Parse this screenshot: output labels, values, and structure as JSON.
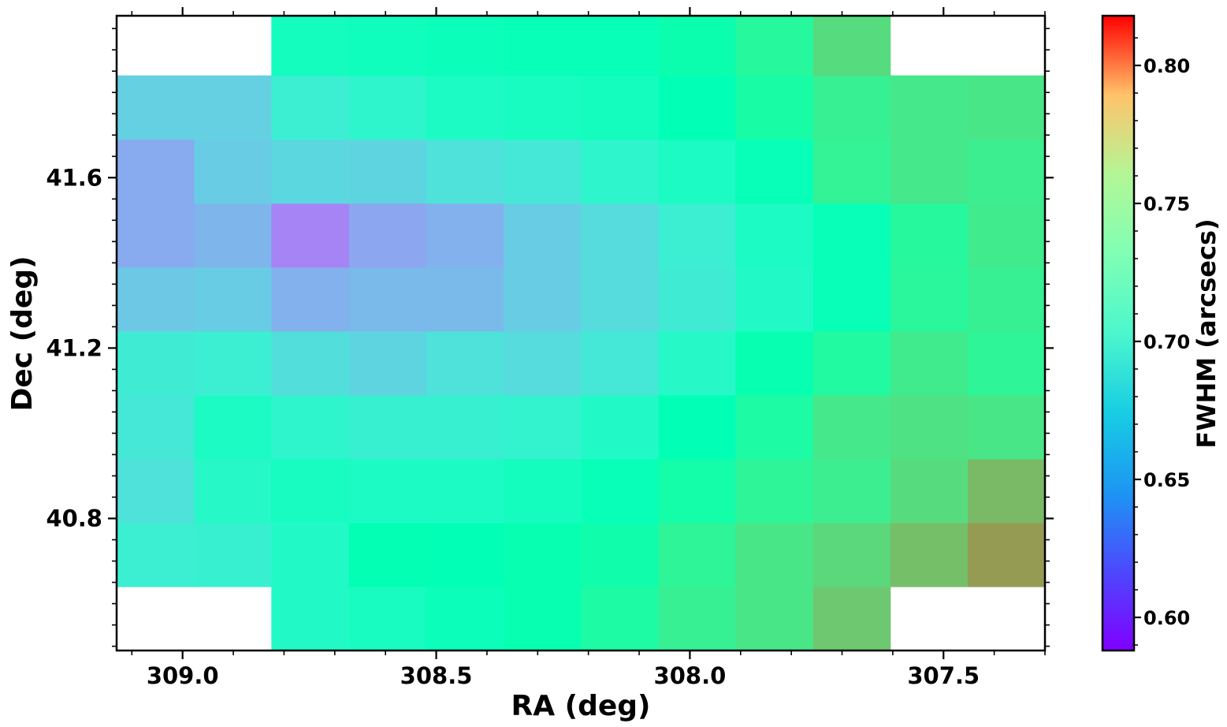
{
  "chart_data": {
    "type": "heatmap",
    "title": "",
    "xlabel": "RA (deg)",
    "ylabel": "Dec (deg)",
    "colorbar_label": "FWHM (arcsecs)",
    "colormap": "rainbow",
    "x_inverted": true,
    "xlim": [
      309.13,
      307.3
    ],
    "ylim": [
      40.49,
      41.98
    ],
    "x_ticks": [
      309.0,
      308.5,
      308.0,
      307.5
    ],
    "x_tick_labels": [
      "309.0",
      "308.5",
      "308.0",
      "307.5"
    ],
    "y_ticks": [
      40.8,
      41.2,
      41.6
    ],
    "y_tick_labels": [
      "40.8",
      "41.2",
      "41.6"
    ],
    "clim": [
      0.588,
      0.818
    ],
    "colorbar_ticks": [
      0.6,
      0.65,
      0.7,
      0.75,
      0.8
    ],
    "colorbar_tick_labels": [
      "0.60",
      "0.65",
      "0.70",
      "0.75",
      "0.80"
    ],
    "x_bin_edges": [
      309.13,
      308.977,
      308.825,
      308.672,
      308.52,
      308.367,
      308.215,
      308.062,
      307.91,
      307.757,
      307.605,
      307.452,
      307.3
    ],
    "y_bin_edges": [
      40.49,
      40.64,
      40.79,
      40.94,
      41.09,
      41.24,
      41.39,
      41.54,
      41.69,
      41.84,
      41.98
    ],
    "values_rows_bottom_to_top": [
      [
        null,
        null,
        0.688,
        0.692,
        0.698,
        0.706,
        0.716,
        0.728,
        0.736,
        0.752,
        null,
        null
      ],
      [
        0.676,
        0.678,
        0.688,
        0.704,
        0.702,
        0.706,
        0.71,
        0.724,
        0.736,
        0.744,
        0.756,
        0.77
      ],
      [
        0.668,
        0.686,
        0.692,
        0.69,
        0.69,
        0.694,
        0.7,
        0.712,
        0.724,
        0.73,
        0.742,
        0.758
      ],
      [
        0.672,
        0.69,
        0.682,
        0.678,
        0.678,
        0.68,
        0.688,
        0.702,
        0.716,
        0.734,
        0.738,
        0.736
      ],
      [
        0.674,
        0.676,
        0.666,
        0.66,
        0.668,
        0.664,
        0.672,
        0.686,
        0.706,
        0.718,
        0.732,
        0.724
      ],
      [
        0.654,
        0.656,
        0.644,
        0.648,
        0.648,
        0.656,
        0.664,
        0.674,
        0.688,
        0.7,
        0.722,
        0.728
      ],
      [
        0.642,
        0.646,
        0.628,
        0.64,
        0.644,
        0.656,
        0.664,
        0.676,
        0.69,
        0.7,
        0.72,
        0.732
      ],
      [
        0.642,
        0.656,
        0.662,
        0.66,
        0.668,
        0.672,
        0.682,
        0.69,
        0.7,
        0.726,
        0.734,
        0.73
      ],
      [
        0.658,
        0.658,
        0.676,
        0.682,
        0.69,
        0.692,
        0.694,
        0.702,
        0.714,
        0.728,
        0.734,
        0.736
      ],
      [
        null,
        null,
        0.694,
        0.696,
        0.698,
        0.7,
        0.7,
        0.708,
        0.72,
        0.742,
        null,
        null
      ]
    ]
  }
}
